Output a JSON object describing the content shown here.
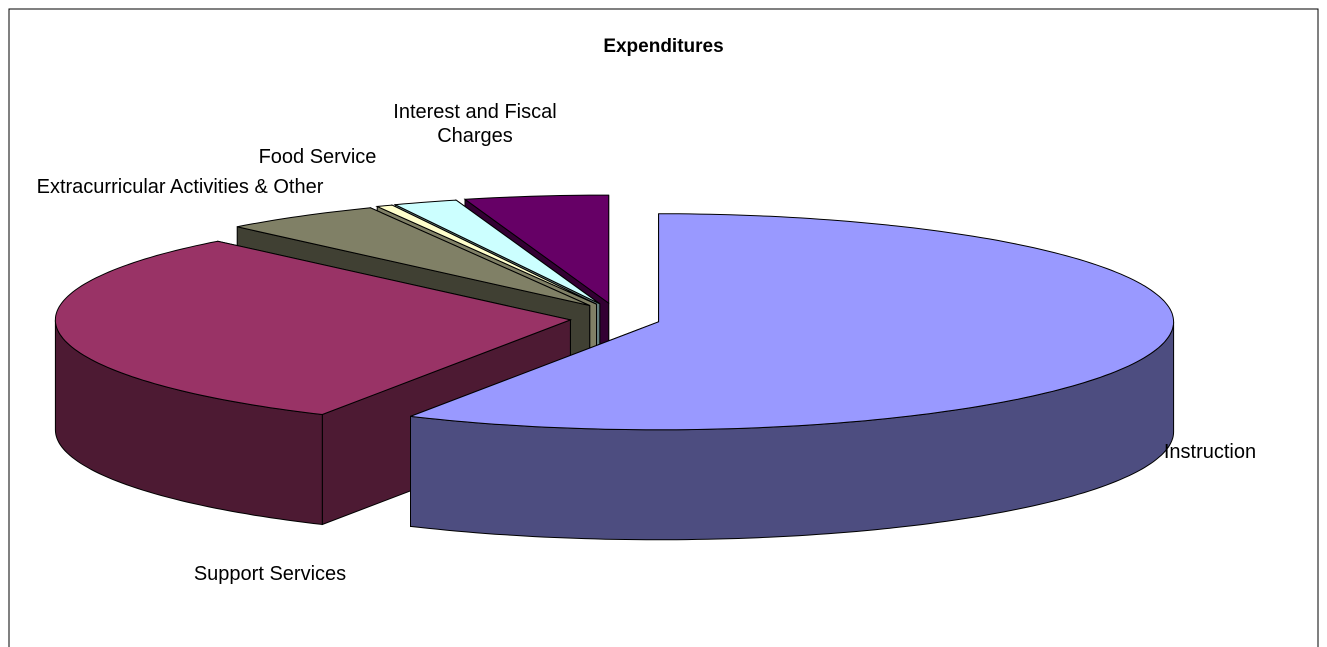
{
  "chart_data": {
    "type": "pie3d",
    "title": "Expenditures",
    "categories": [
      "Instruction",
      "Support Services",
      "Extracurricular Activities & Other",
      null,
      "Food Service",
      "Interest and Fiscal Charges"
    ],
    "values": [
      58,
      30,
      5,
      0.5,
      2,
      4.5
    ],
    "colors": [
      "#9999ff",
      "#993366",
      "#808066",
      "#ffffcc",
      "#ccffff",
      "#660066"
    ]
  }
}
